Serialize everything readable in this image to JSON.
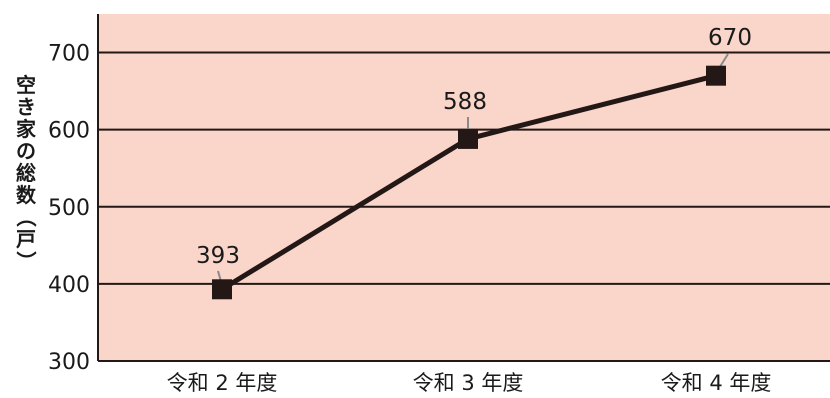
{
  "chart_data": {
    "type": "line",
    "categories": [
      "令和 2 年度",
      "令和 3 年度",
      "令和 4 年度"
    ],
    "series": [
      {
        "values": [
          393,
          588,
          670
        ]
      }
    ],
    "ylabel": "空き家の総数（戸）",
    "ylim": [
      300,
      750
    ],
    "yticks": [
      300,
      400,
      500,
      600,
      700
    ],
    "grid": true,
    "colors": {
      "plot_background": "#f9d5ca",
      "line": "#231815",
      "marker": "#231815",
      "grid": "#231815",
      "leader_line": "#8a8a8a"
    }
  }
}
